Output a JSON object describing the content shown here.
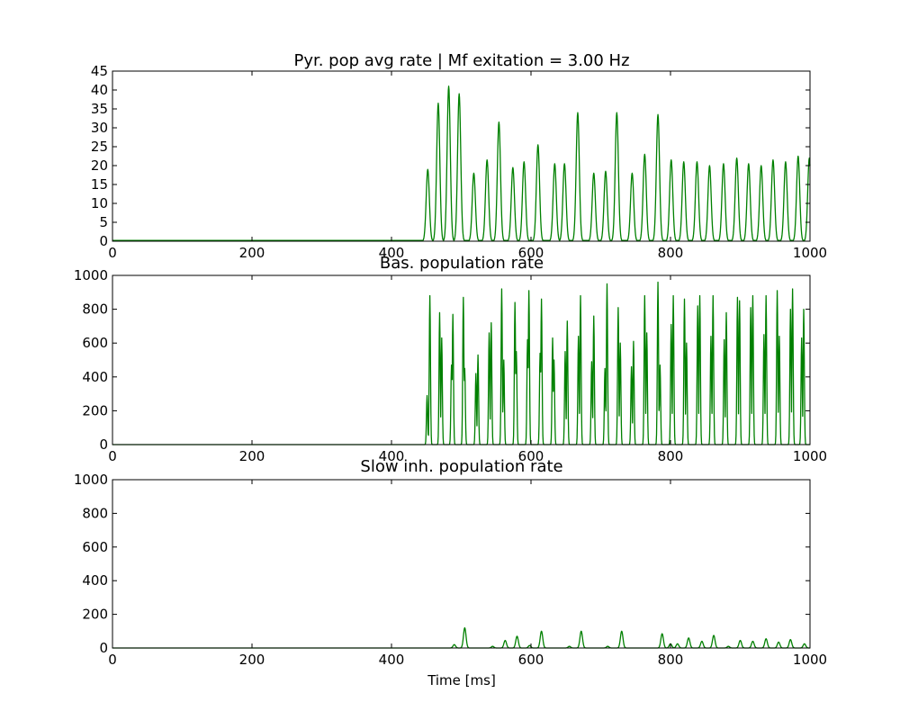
{
  "chart_data": [
    {
      "type": "line",
      "title": "Pyr. pop avg rate | Mf exitation = 3.00 Hz",
      "xlabel": "",
      "ylabel": "",
      "xlim": [
        0,
        1000
      ],
      "ylim": [
        0,
        45
      ],
      "xticks": [
        0,
        200,
        400,
        600,
        800,
        1000
      ],
      "yticks": [
        0,
        5,
        10,
        15,
        20,
        25,
        30,
        35,
        40,
        45
      ],
      "grid": false,
      "color": "#008000",
      "series": [
        {
          "baseline": 0.2,
          "peaks": [
            {
              "t": 452,
              "v": 19
            },
            {
              "t": 467,
              "v": 36.5
            },
            {
              "t": 482,
              "v": 41
            },
            {
              "t": 497,
              "v": 39
            },
            {
              "t": 518,
              "v": 18
            },
            {
              "t": 537,
              "v": 21.5
            },
            {
              "t": 554,
              "v": 31.5
            },
            {
              "t": 574,
              "v": 19.5
            },
            {
              "t": 590,
              "v": 21
            },
            {
              "t": 610,
              "v": 25.5
            },
            {
              "t": 634,
              "v": 20.5
            },
            {
              "t": 648,
              "v": 20.5
            },
            {
              "t": 667,
              "v": 34
            },
            {
              "t": 690,
              "v": 18
            },
            {
              "t": 707,
              "v": 18.5
            },
            {
              "t": 723,
              "v": 34
            },
            {
              "t": 745,
              "v": 18
            },
            {
              "t": 763,
              "v": 23
            },
            {
              "t": 782,
              "v": 33.5
            },
            {
              "t": 801,
              "v": 21.5
            },
            {
              "t": 819,
              "v": 21
            },
            {
              "t": 838,
              "v": 21
            },
            {
              "t": 856,
              "v": 20
            },
            {
              "t": 876,
              "v": 20.5
            },
            {
              "t": 895,
              "v": 22
            },
            {
              "t": 912,
              "v": 20.5
            },
            {
              "t": 930,
              "v": 20
            },
            {
              "t": 947,
              "v": 21.5
            },
            {
              "t": 965,
              "v": 21
            },
            {
              "t": 983,
              "v": 22.5
            },
            {
              "t": 999,
              "v": 22
            }
          ]
        }
      ]
    },
    {
      "type": "line",
      "title": "Bas. population rate",
      "xlabel": "",
      "ylabel": "",
      "xlim": [
        0,
        1000
      ],
      "ylim": [
        0,
        1000
      ],
      "xticks": [
        0,
        200,
        400,
        600,
        800,
        1000
      ],
      "yticks": [
        0,
        200,
        400,
        600,
        800,
        1000
      ],
      "grid": false,
      "color": "#008000",
      "series": [
        {
          "baseline": 0,
          "peaks": [
            {
              "t": 451,
              "v": 290
            },
            {
              "t": 455,
              "v": 880
            },
            {
              "t": 469,
              "v": 780
            },
            {
              "t": 472,
              "v": 630
            },
            {
              "t": 486,
              "v": 470
            },
            {
              "t": 488,
              "v": 770
            },
            {
              "t": 503,
              "v": 870
            },
            {
              "t": 505,
              "v": 450
            },
            {
              "t": 521,
              "v": 420
            },
            {
              "t": 524,
              "v": 530
            },
            {
              "t": 540,
              "v": 660
            },
            {
              "t": 543,
              "v": 720
            },
            {
              "t": 558,
              "v": 920
            },
            {
              "t": 561,
              "v": 500
            },
            {
              "t": 577,
              "v": 840
            },
            {
              "t": 579,
              "v": 550
            },
            {
              "t": 595,
              "v": 620
            },
            {
              "t": 597,
              "v": 910
            },
            {
              "t": 613,
              "v": 540
            },
            {
              "t": 615,
              "v": 860
            },
            {
              "t": 631,
              "v": 630
            },
            {
              "t": 633,
              "v": 500
            },
            {
              "t": 649,
              "v": 550
            },
            {
              "t": 652,
              "v": 730
            },
            {
              "t": 668,
              "v": 640
            },
            {
              "t": 671,
              "v": 880
            },
            {
              "t": 687,
              "v": 490
            },
            {
              "t": 690,
              "v": 760
            },
            {
              "t": 706,
              "v": 450
            },
            {
              "t": 709,
              "v": 950
            },
            {
              "t": 725,
              "v": 810
            },
            {
              "t": 728,
              "v": 600
            },
            {
              "t": 744,
              "v": 460
            },
            {
              "t": 747,
              "v": 610
            },
            {
              "t": 763,
              "v": 880
            },
            {
              "t": 766,
              "v": 660
            },
            {
              "t": 782,
              "v": 960
            },
            {
              "t": 785,
              "v": 470
            },
            {
              "t": 801,
              "v": 710
            },
            {
              "t": 804,
              "v": 880
            },
            {
              "t": 820,
              "v": 860
            },
            {
              "t": 823,
              "v": 600
            },
            {
              "t": 839,
              "v": 820
            },
            {
              "t": 842,
              "v": 880
            },
            {
              "t": 858,
              "v": 640
            },
            {
              "t": 861,
              "v": 880
            },
            {
              "t": 877,
              "v": 620
            },
            {
              "t": 880,
              "v": 780
            },
            {
              "t": 896,
              "v": 870
            },
            {
              "t": 899,
              "v": 850
            },
            {
              "t": 915,
              "v": 810
            },
            {
              "t": 918,
              "v": 880
            },
            {
              "t": 934,
              "v": 650
            },
            {
              "t": 937,
              "v": 880
            },
            {
              "t": 953,
              "v": 910
            },
            {
              "t": 956,
              "v": 640
            },
            {
              "t": 972,
              "v": 800
            },
            {
              "t": 975,
              "v": 920
            },
            {
              "t": 988,
              "v": 630
            },
            {
              "t": 991,
              "v": 800
            }
          ]
        }
      ]
    },
    {
      "type": "line",
      "title": "Slow inh. population rate",
      "xlabel": "Time [ms]",
      "ylabel": "",
      "xlim": [
        0,
        1000
      ],
      "ylim": [
        0,
        1000
      ],
      "xticks": [
        0,
        200,
        400,
        600,
        800,
        1000
      ],
      "yticks": [
        0,
        200,
        400,
        600,
        800,
        1000
      ],
      "grid": false,
      "color": "#008000",
      "series": [
        {
          "baseline": 0,
          "peaks": [
            {
              "t": 490,
              "v": 20
            },
            {
              "t": 505,
              "v": 120
            },
            {
              "t": 545,
              "v": 10
            },
            {
              "t": 563,
              "v": 45
            },
            {
              "t": 580,
              "v": 70
            },
            {
              "t": 598,
              "v": 15
            },
            {
              "t": 615,
              "v": 100
            },
            {
              "t": 655,
              "v": 10
            },
            {
              "t": 672,
              "v": 100
            },
            {
              "t": 710,
              "v": 10
            },
            {
              "t": 730,
              "v": 100
            },
            {
              "t": 788,
              "v": 85
            },
            {
              "t": 800,
              "v": 25
            },
            {
              "t": 810,
              "v": 25
            },
            {
              "t": 826,
              "v": 60
            },
            {
              "t": 845,
              "v": 40
            },
            {
              "t": 862,
              "v": 75
            },
            {
              "t": 883,
              "v": 10
            },
            {
              "t": 900,
              "v": 45
            },
            {
              "t": 918,
              "v": 40
            },
            {
              "t": 937,
              "v": 55
            },
            {
              "t": 955,
              "v": 35
            },
            {
              "t": 972,
              "v": 50
            },
            {
              "t": 992,
              "v": 25
            }
          ]
        }
      ]
    }
  ]
}
